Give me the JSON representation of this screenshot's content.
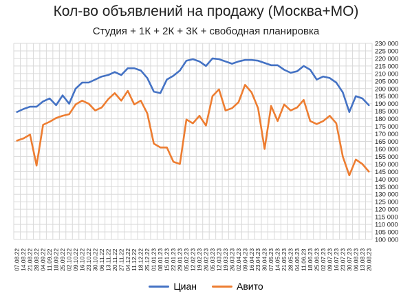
{
  "chart_data": {
    "type": "line",
    "title": "Кол-во объявлений на продажу (Москва+МО)",
    "subtitle": "Студия + 1К + 2К + 3К + свободная планировка",
    "x": [
      "07.08.22",
      "14.08.22",
      "21.08.22",
      "28.08.22",
      "04.09.22",
      "11.09.22",
      "18.09.22",
      "25.09.22",
      "02.10.22",
      "09.10.22",
      "16.10.22",
      "23.10.22",
      "30.10.22",
      "06.11.22",
      "13.11.22",
      "20.11.22",
      "27.11.22",
      "04.12.22",
      "11.12.22",
      "18.12.22",
      "25.12.22",
      "01.01.23",
      "08.01.23",
      "15.01.23",
      "22.01.23",
      "29.01.23",
      "05.02.23",
      "12.02.23",
      "19.02.23",
      "26.02.23",
      "05.03.23",
      "12.03.23",
      "19.03.23",
      "26.03.23",
      "02.04.23",
      "09.04.23",
      "16.04.23",
      "23.04.23",
      "30.04.23",
      "07.05.23",
      "14.05.23",
      "21.05.23",
      "28.05.23",
      "04.06.23",
      "11.06.23",
      "18.06.23",
      "25.06.23",
      "02.07.23",
      "09.07.23",
      "16.07.23",
      "23.07.23",
      "30.07.23",
      "06.08.23",
      "13.08.23",
      "20.08.23"
    ],
    "series": [
      {
        "name": "Циан",
        "color": "#4472C4",
        "values": [
          184500,
          186500,
          188000,
          188000,
          191500,
          193500,
          189000,
          195500,
          190000,
          200000,
          204000,
          204000,
          206000,
          208000,
          209000,
          211000,
          209000,
          213500,
          213500,
          212000,
          207000,
          198000,
          197000,
          206000,
          208500,
          212000,
          218500,
          219500,
          218000,
          215000,
          220000,
          219500,
          218000,
          216500,
          218000,
          219000,
          219000,
          218500,
          217000,
          215500,
          215500,
          212500,
          210500,
          211500,
          215000,
          212500,
          206000,
          208000,
          207000,
          204000,
          197500,
          184500,
          195000,
          193500,
          189000
        ]
      },
      {
        "name": "Авито",
        "color": "#ED7D31",
        "values": [
          165500,
          167000,
          169500,
          149000,
          176000,
          178000,
          180500,
          182000,
          183000,
          189500,
          192000,
          190000,
          185500,
          187500,
          193000,
          197000,
          192000,
          198500,
          189500,
          192000,
          183500,
          163500,
          161000,
          161000,
          151500,
          150000,
          179500,
          177000,
          182000,
          175500,
          195000,
          199500,
          185500,
          187000,
          191000,
          202500,
          197500,
          187000,
          160000,
          188500,
          178500,
          189500,
          185500,
          187500,
          192500,
          178500,
          176500,
          178500,
          182000,
          177000,
          155000,
          142500,
          153000,
          150000,
          145000
        ]
      }
    ],
    "ylim": [
      100000,
      230000
    ],
    "ystep": 5000,
    "y_tick_labels": [
      "100 000",
      "105 000",
      "110 000",
      "115 000",
      "120 000",
      "125 000",
      "130 000",
      "135 000",
      "140 000",
      "145 000",
      "150 000",
      "155 000",
      "160 000",
      "165 000",
      "170 000",
      "175 000",
      "180 000",
      "185 000",
      "190 000",
      "195 000",
      "200 000",
      "205 000",
      "210 000",
      "215 000",
      "220 000",
      "225 000",
      "230 000"
    ],
    "y_axis_side": "right",
    "grid": true,
    "legend_position": "bottom"
  }
}
